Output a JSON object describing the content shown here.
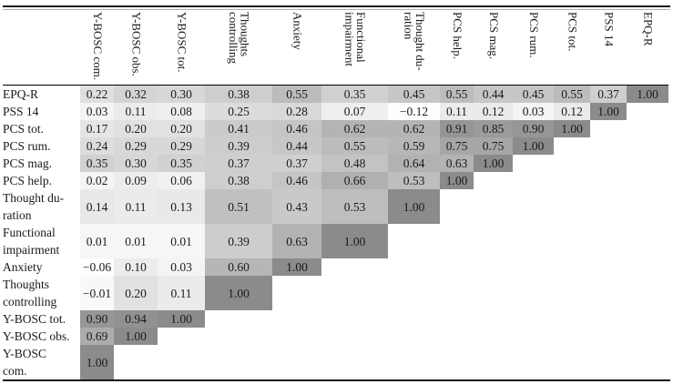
{
  "table": {
    "kind": "correlation-matrix-heatmap",
    "columns": [
      "Y-BOSC com.",
      "Y-BOSC obs.",
      "Y-BOSC tot.",
      "Thoughts\ncontrolling",
      "Anxiety",
      "Functional\nimpairment",
      "Thought du-\nration",
      "PCS help.",
      "PCS mag.",
      "PCS rum.",
      "PCS tot.",
      "PSS 14",
      "EPQ-R"
    ],
    "rows": [
      {
        "label": "EPQ-R",
        "values": [
          "0.22",
          "0.32",
          "0.30",
          "0.38",
          "0.55",
          "0.35",
          "0.45",
          "0.55",
          "0.44",
          "0.45",
          "0.55",
          "0.37",
          "1.00"
        ]
      },
      {
        "label": "PSS 14",
        "values": [
          "0.03",
          "0.11",
          "0.08",
          "0.25",
          "0.28",
          "0.07",
          "−0.12",
          "0.11",
          "0.12",
          "0.03",
          "0.12",
          "1.00"
        ]
      },
      {
        "label": "PCS tot.",
        "values": [
          "0.17",
          "0.20",
          "0.20",
          "0.41",
          "0.46",
          "0.62",
          "0.62",
          "0.91",
          "0.85",
          "0.90",
          "1.00"
        ]
      },
      {
        "label": "PCS rum.",
        "values": [
          "0.24",
          "0.29",
          "0.29",
          "0.39",
          "0.44",
          "0.55",
          "0.59",
          "0.75",
          "0.75",
          "1.00"
        ]
      },
      {
        "label": "PCS mag.",
        "values": [
          "0.35",
          "0.30",
          "0.35",
          "0.37",
          "0.37",
          "0.48",
          "0.64",
          "0.63",
          "1.00"
        ]
      },
      {
        "label": "PCS help.",
        "values": [
          "0.02",
          "0.09",
          "0.06",
          "0.38",
          "0.46",
          "0.66",
          "0.53",
          "1.00"
        ]
      },
      {
        "label": "Thought du-\nration",
        "values": [
          "0.14",
          "0.11",
          "0.13",
          "0.51",
          "0.43",
          "0.53",
          "1.00"
        ]
      },
      {
        "label": "Functional\nimpairment",
        "values": [
          "0.01",
          "0.01",
          "0.01",
          "0.39",
          "0.63",
          "1.00"
        ]
      },
      {
        "label": "Anxiety",
        "values": [
          "−0.06",
          "0.10",
          "0.03",
          "0.60",
          "1.00"
        ]
      },
      {
        "label": "Thoughts\ncontrolling",
        "values": [
          "−0.01",
          "0.20",
          "0.11",
          "1.00"
        ]
      },
      {
        "label": "Y-BOSC tot.",
        "values": [
          "0.90",
          "0.94",
          "1.00"
        ]
      },
      {
        "label": "Y-BOSC obs.",
        "values": [
          "0.69",
          "1.00"
        ]
      },
      {
        "label": "Y-BOSC\ncom.",
        "values": [
          "1.00"
        ]
      }
    ],
    "shading": {
      "strongest_color": "#8b8b8b",
      "weakest_color": "#fdfdfd",
      "note": "darker gray = stronger correlation; cells above the diagonal are blank"
    }
  }
}
